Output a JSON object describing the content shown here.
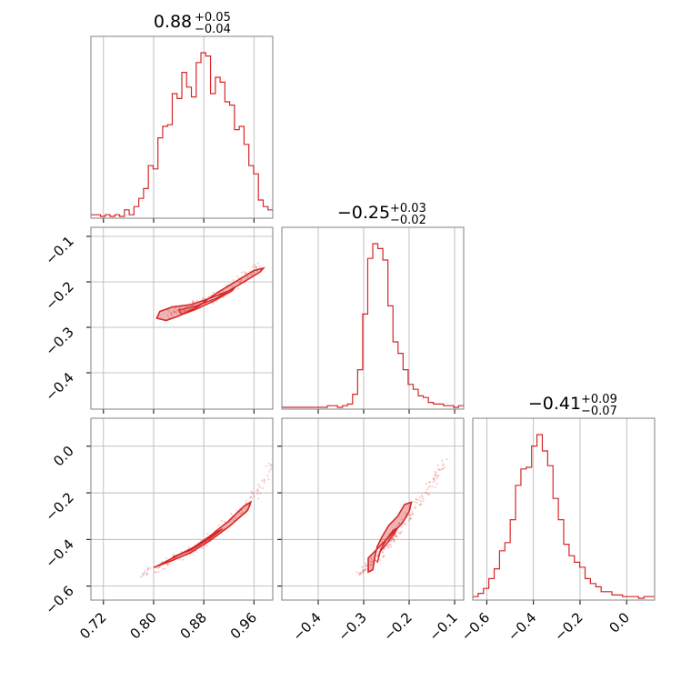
{
  "chart_data": {
    "type": "corner",
    "color": "#d62728",
    "parameters": [
      {
        "title_value": "0.88",
        "title_plus": "+0.05",
        "title_minus": "−0.04",
        "range": [
          0.7,
          0.99
        ],
        "ticks": [
          0.72,
          0.8,
          0.88,
          0.96
        ],
        "tick_labels": [
          "0.72",
          "0.80",
          "0.88",
          "0.96"
        ],
        "histogram": [
          0.01,
          0.01,
          0.0,
          0.01,
          0.0,
          0.01,
          0.0,
          0.04,
          0.01,
          0.06,
          0.11,
          0.17,
          0.31,
          0.29,
          0.48,
          0.55,
          0.56,
          0.75,
          0.72,
          0.88,
          0.79,
          0.73,
          0.94,
          1.0,
          0.98,
          0.75,
          0.85,
          0.82,
          0.7,
          0.68,
          0.53,
          0.55,
          0.44,
          0.31,
          0.26,
          0.1,
          0.06,
          0.04
        ]
      },
      {
        "title_value": "−0.25",
        "title_plus": "+0.03",
        "title_minus": "−0.02",
        "range": [
          -0.48,
          -0.08
        ],
        "ticks": [
          -0.4,
          -0.3,
          -0.2,
          -0.1
        ],
        "tick_labels": [
          "−0.4",
          "−0.3",
          "−0.2",
          "−0.1"
        ],
        "histogram": [
          0.0,
          0.0,
          0.0,
          0.0,
          0.0,
          0.0,
          0.0,
          0.0,
          0.0,
          0.01,
          0.01,
          0.0,
          0.01,
          0.02,
          0.08,
          0.23,
          0.57,
          0.91,
          1.0,
          0.97,
          0.9,
          0.62,
          0.4,
          0.33,
          0.23,
          0.14,
          0.11,
          0.07,
          0.06,
          0.03,
          0.02,
          0.02,
          0.01,
          0.01,
          0.0,
          0.01
        ]
      },
      {
        "title_value": "−0.41",
        "title_plus": "+0.09",
        "title_minus": "−0.07",
        "range": [
          -0.66,
          0.12
        ],
        "ticks": [
          -0.6,
          -0.4,
          -0.2,
          0.0
        ],
        "tick_labels": [
          "−0.6",
          "−0.4",
          "−0.2",
          "0.0"
        ],
        "histogram": [
          0.01,
          0.03,
          0.06,
          0.12,
          0.18,
          0.29,
          0.34,
          0.48,
          0.69,
          0.79,
          0.8,
          0.93,
          1.0,
          0.9,
          0.81,
          0.61,
          0.48,
          0.33,
          0.26,
          0.22,
          0.19,
          0.12,
          0.09,
          0.07,
          0.04,
          0.04,
          0.02,
          0.02,
          0.01,
          0.01,
          0.01,
          0.0,
          0.01,
          0.01
        ]
      }
    ],
    "pairs": [
      {
        "x_param": 0,
        "y_param": 1,
        "samples": [
          [
            0.82,
            -0.27
          ],
          [
            0.85,
            -0.26
          ],
          [
            0.88,
            -0.245
          ],
          [
            0.91,
            -0.225
          ],
          [
            0.94,
            -0.195
          ],
          [
            0.97,
            -0.16
          ]
        ],
        "contours_outer": [
          [
            0.81,
            -0.265
          ],
          [
            0.83,
            -0.255
          ],
          [
            0.86,
            -0.25
          ],
          [
            0.89,
            -0.236
          ],
          [
            0.92,
            -0.22
          ],
          [
            0.95,
            -0.195
          ],
          [
            0.97,
            -0.178
          ],
          [
            0.975,
            -0.17
          ],
          [
            0.96,
            -0.175
          ],
          [
            0.93,
            -0.2
          ],
          [
            0.9,
            -0.225
          ],
          [
            0.87,
            -0.255
          ],
          [
            0.84,
            -0.275
          ],
          [
            0.82,
            -0.285
          ],
          [
            0.805,
            -0.28
          ]
        ],
        "contours_inner": [
          [
            0.84,
            -0.262
          ],
          [
            0.87,
            -0.252
          ],
          [
            0.9,
            -0.236
          ],
          [
            0.93,
            -0.212
          ],
          [
            0.925,
            -0.22
          ],
          [
            0.895,
            -0.243
          ],
          [
            0.865,
            -0.262
          ],
          [
            0.845,
            -0.272
          ]
        ]
      },
      {
        "x_param": 0,
        "y_param": 2,
        "samples": [
          [
            0.78,
            -0.56
          ],
          [
            0.82,
            -0.5
          ],
          [
            0.86,
            -0.45
          ],
          [
            0.89,
            -0.39
          ],
          [
            0.93,
            -0.3
          ],
          [
            0.96,
            -0.22
          ],
          [
            0.99,
            -0.06
          ]
        ],
        "contours_outer": [
          [
            0.8,
            -0.52
          ],
          [
            0.83,
            -0.49
          ],
          [
            0.86,
            -0.455
          ],
          [
            0.89,
            -0.405
          ],
          [
            0.92,
            -0.345
          ],
          [
            0.95,
            -0.275
          ],
          [
            0.955,
            -0.24
          ],
          [
            0.945,
            -0.255
          ],
          [
            0.92,
            -0.32
          ],
          [
            0.89,
            -0.385
          ],
          [
            0.86,
            -0.44
          ],
          [
            0.83,
            -0.48
          ],
          [
            0.805,
            -0.515
          ]
        ],
        "contours_inner": [
          [
            0.83,
            -0.475
          ],
          [
            0.86,
            -0.445
          ],
          [
            0.89,
            -0.395
          ],
          [
            0.91,
            -0.355
          ],
          [
            0.9,
            -0.37
          ],
          [
            0.87,
            -0.425
          ],
          [
            0.84,
            -0.465
          ]
        ]
      },
      {
        "x_param": 1,
        "y_param": 2,
        "samples": [
          [
            -0.31,
            -0.55
          ],
          [
            -0.28,
            -0.5
          ],
          [
            -0.26,
            -0.45
          ],
          [
            -0.24,
            -0.4
          ],
          [
            -0.22,
            -0.35
          ],
          [
            -0.19,
            -0.26
          ],
          [
            -0.15,
            -0.16
          ],
          [
            -0.12,
            -0.06
          ]
        ],
        "contours_outer": [
          [
            -0.29,
            -0.54
          ],
          [
            -0.29,
            -0.48
          ],
          [
            -0.275,
            -0.45
          ],
          [
            -0.255,
            -0.41
          ],
          [
            -0.235,
            -0.37
          ],
          [
            -0.215,
            -0.33
          ],
          [
            -0.2,
            -0.28
          ],
          [
            -0.195,
            -0.24
          ],
          [
            -0.21,
            -0.25
          ],
          [
            -0.225,
            -0.3
          ],
          [
            -0.245,
            -0.34
          ],
          [
            -0.26,
            -0.39
          ],
          [
            -0.27,
            -0.43
          ],
          [
            -0.275,
            -0.47
          ],
          [
            -0.28,
            -0.53
          ]
        ],
        "contours_inner": [
          [
            -0.27,
            -0.5
          ],
          [
            -0.265,
            -0.455
          ],
          [
            -0.25,
            -0.42
          ],
          [
            -0.235,
            -0.38
          ],
          [
            -0.225,
            -0.35
          ],
          [
            -0.235,
            -0.36
          ],
          [
            -0.25,
            -0.4
          ],
          [
            -0.262,
            -0.44
          ]
        ]
      }
    ]
  }
}
